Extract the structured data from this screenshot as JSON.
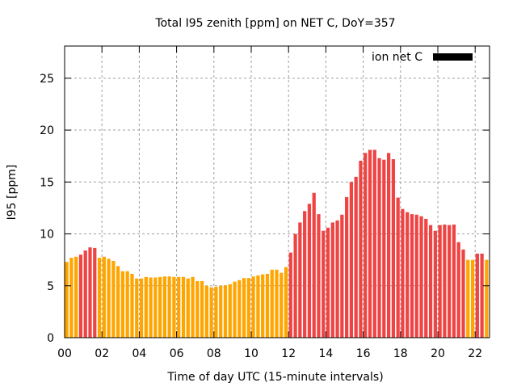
{
  "chart_data": {
    "type": "bar",
    "title": "Total I95 zenith [ppm] on NET C, DoY=357",
    "xlabel": "Time of day UTC (15-minute intervals)",
    "ylabel": "I95 [ppm]",
    "xlim": [
      0,
      22.77
    ],
    "ylim": [
      0,
      28.1
    ],
    "grid": true,
    "legend": {
      "label": "ion net C",
      "placement": "top-right",
      "color": "#000000"
    },
    "x_ticks": [
      "00",
      "02",
      "04",
      "06",
      "08",
      "10",
      "12",
      "14",
      "16",
      "18",
      "20",
      "22"
    ],
    "x_tick_values": [
      0,
      2,
      4,
      6,
      8,
      10,
      12,
      14,
      16,
      18,
      20,
      22
    ],
    "y_ticks": [
      "0",
      "5",
      "10",
      "15",
      "20",
      "25"
    ],
    "y_tick_values": [
      0,
      5,
      10,
      15,
      20,
      25
    ],
    "bin_hours": 0.25,
    "threshold": 7.9,
    "colors": {
      "low": "#ffa500",
      "high": "#ee4444"
    },
    "values": [
      7.3,
      7.7,
      7.8,
      8.0,
      8.4,
      8.7,
      8.65,
      7.7,
      7.8,
      7.6,
      7.4,
      6.9,
      6.4,
      6.4,
      6.15,
      5.7,
      5.7,
      5.85,
      5.8,
      5.8,
      5.85,
      5.9,
      5.9,
      5.85,
      5.85,
      5.85,
      5.7,
      5.85,
      5.45,
      5.45,
      5.0,
      4.85,
      4.9,
      5.0,
      5.05,
      5.15,
      5.4,
      5.55,
      5.75,
      5.75,
      5.9,
      6.0,
      6.1,
      6.15,
      6.55,
      6.55,
      6.25,
      6.8,
      8.2,
      10.0,
      11.1,
      12.2,
      12.9,
      13.95,
      11.9,
      10.3,
      10.6,
      11.1,
      11.3,
      11.85,
      13.55,
      15.0,
      15.5,
      17.05,
      17.8,
      18.1,
      18.1,
      17.3,
      17.15,
      17.8,
      17.2,
      13.5,
      12.4,
      12.1,
      11.9,
      11.85,
      11.7,
      11.45,
      10.85,
      10.3,
      10.85,
      10.9,
      10.85,
      10.9,
      9.2,
      8.5,
      7.5,
      7.5,
      8.1,
      8.1,
      7.5,
      6.5
    ]
  }
}
